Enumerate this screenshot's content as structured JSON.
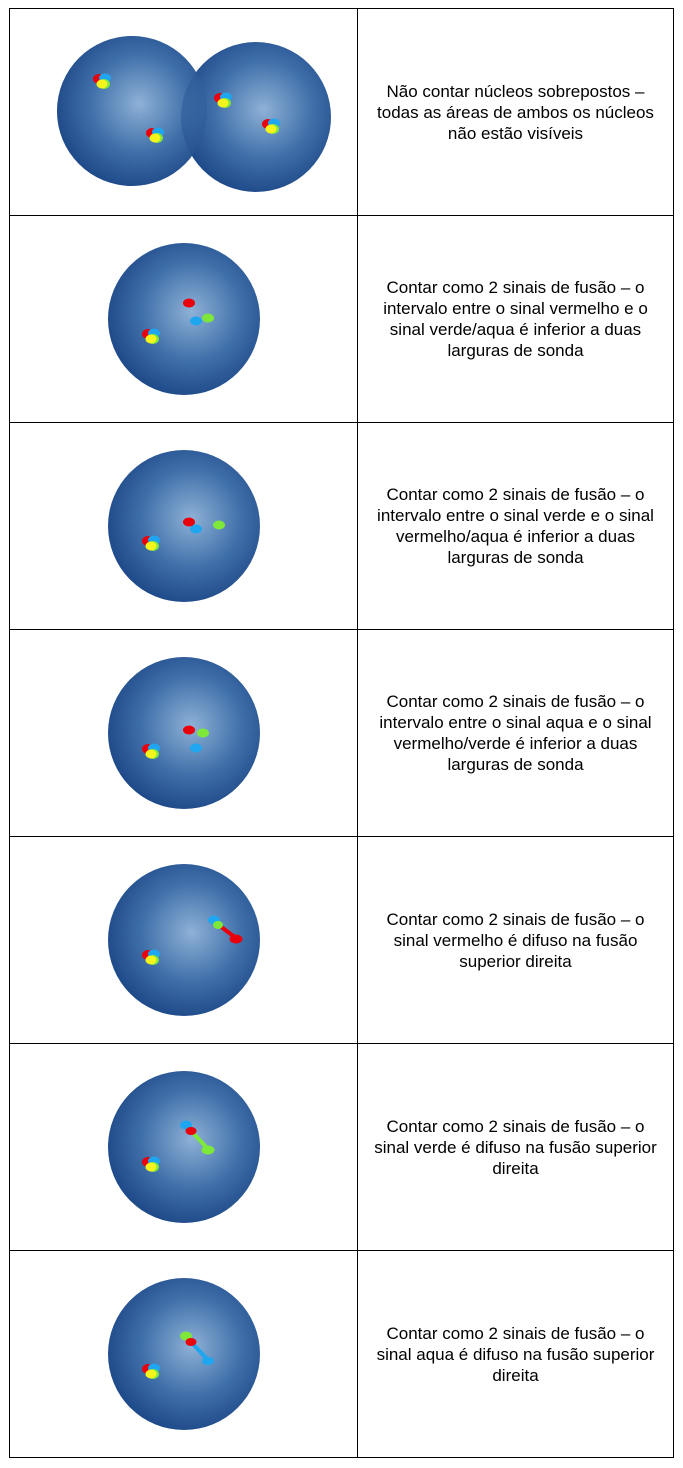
{
  "rows": [
    {
      "text": "Não contar núcleos sobrepostos – todas as áreas de ambos os núcleos não estão visíveis"
    },
    {
      "text": "Contar como 2 sinais de fusão – o intervalo entre o sinal vermelho e o sinal verde/aqua é inferior a duas larguras de sonda"
    },
    {
      "text": "Contar como 2 sinais de fusão – o intervalo entre o sinal verde e o sinal vermelho/aqua é inferior a duas larguras de sonda"
    },
    {
      "text": "Contar como 2 sinais de fusão – o intervalo entre o sinal aqua e o sinal vermelho/verde é inferior a duas larguras de sonda"
    },
    {
      "text": "Contar como 2 sinais de fusão – o sinal vermelho é difuso na fusão superior direita"
    },
    {
      "text": "Contar como 2 sinais de fusão – o sinal verde é difuso na fusão superior direita"
    },
    {
      "text": "Contar como 2 sinais de fusão – o sinal aqua é difuso na fusão superior direita"
    }
  ]
}
